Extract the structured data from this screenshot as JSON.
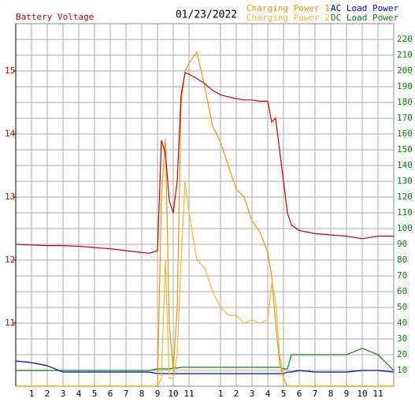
{
  "chart_data": {
    "type": "line",
    "title": "01/23/2022",
    "x": [
      0,
      1,
      2,
      3,
      4,
      5,
      6,
      7,
      8,
      8.5,
      9,
      9.25,
      9.5,
      9.75,
      10,
      10.25,
      10.5,
      10.75,
      11,
      11.5,
      12,
      12.5,
      13,
      13.5,
      14,
      14.5,
      15,
      15.5,
      16,
      16.25,
      16.5,
      16.75,
      17,
      17.25,
      17.5,
      18,
      19,
      20,
      21,
      22,
      23,
      24
    ],
    "xlim": [
      0,
      24
    ],
    "xticks": [
      1,
      2,
      3,
      4,
      5,
      6,
      7,
      8,
      9,
      10,
      11,
      {
        "value": 13,
        "label": "1"
      },
      {
        "value": 14,
        "label": "2"
      },
      {
        "value": 15,
        "label": "3"
      },
      {
        "value": 16,
        "label": "4"
      },
      {
        "value": 17,
        "label": "5"
      },
      {
        "value": 18,
        "label": "6"
      },
      {
        "value": 19,
        "label": "7"
      },
      {
        "value": 20,
        "label": "8"
      },
      {
        "value": 21,
        "label": "9"
      },
      {
        "value": 22,
        "label": "10"
      },
      {
        "value": 23,
        "label": "11"
      }
    ],
    "ylim": [
      10,
      15.75
    ],
    "yticks": [
      11,
      12,
      13,
      14,
      15
    ],
    "y2lim": [
      0,
      230
    ],
    "y2ticks": [
      10,
      20,
      30,
      40,
      50,
      60,
      70,
      80,
      90,
      100,
      110,
      120,
      130,
      140,
      150,
      160,
      170,
      180,
      190,
      200,
      210,
      220
    ],
    "grid": true,
    "series": [
      {
        "name": "Battery Voltage",
        "color": "#cc0000",
        "values": [
          12.25,
          12.24,
          12.23,
          12.23,
          12.22,
          12.2,
          12.18,
          12.15,
          12.12,
          12.11,
          12.15,
          13.9,
          13.7,
          12.94,
          12.75,
          13.25,
          14.62,
          14.97,
          14.95,
          14.88,
          14.8,
          14.69,
          14.62,
          14.59,
          14.56,
          14.54,
          14.54,
          14.52,
          14.52,
          14.19,
          14.25,
          13.75,
          13.25,
          12.75,
          12.56,
          12.47,
          12.42,
          12.4,
          12.38,
          12.34,
          12.38,
          12.38
        ]
      },
      {
        "name": "Charging Power 1",
        "color": "#e89a00",
        "axis": "y2",
        "values": [
          0,
          0,
          0,
          0,
          0,
          0,
          0,
          0,
          0,
          0,
          0,
          120,
          157,
          40,
          10,
          50,
          180,
          200,
          205,
          212,
          190,
          165,
          155,
          140,
          125,
          120,
          105,
          98,
          85,
          70,
          40,
          15,
          5,
          0,
          0,
          0,
          0,
          0,
          0,
          0,
          0,
          0
        ]
      },
      {
        "name": "Charging Power 2",
        "color": "#f0b830",
        "axis": "y2",
        "values": [
          0,
          0,
          0,
          0,
          0,
          0,
          0,
          0,
          0,
          0,
          0,
          5,
          80,
          5,
          5,
          20,
          80,
          130,
          110,
          80,
          75,
          60,
          50,
          45,
          45,
          40,
          42,
          40,
          42,
          65,
          55,
          20,
          5,
          0,
          0,
          0,
          0,
          0,
          0,
          0,
          0,
          0
        ]
      },
      {
        "name": "AC Load Power",
        "color": "#0000cc",
        "axis": "y2",
        "values": [
          16,
          15,
          13,
          9,
          9,
          9,
          9,
          9,
          9,
          9,
          8,
          8,
          8,
          8,
          8,
          8,
          8,
          8,
          8,
          8,
          8,
          8,
          8,
          8,
          8,
          8,
          8,
          8,
          8,
          8,
          8,
          8,
          8,
          9,
          9,
          10,
          9,
          9,
          9,
          10,
          10,
          9
        ]
      },
      {
        "name": "DC Load Power",
        "color": "#008800",
        "axis": "y2",
        "values": [
          10,
          10,
          10,
          10,
          10,
          10,
          10,
          10,
          10,
          10,
          11,
          11,
          11,
          11,
          11.5,
          11.5,
          12,
          12,
          12,
          12,
          12,
          12,
          12,
          12,
          12,
          12,
          12,
          12,
          12,
          12,
          12,
          12,
          11,
          11,
          20,
          20,
          20,
          20,
          20,
          24,
          20,
          10
        ]
      }
    ]
  }
}
